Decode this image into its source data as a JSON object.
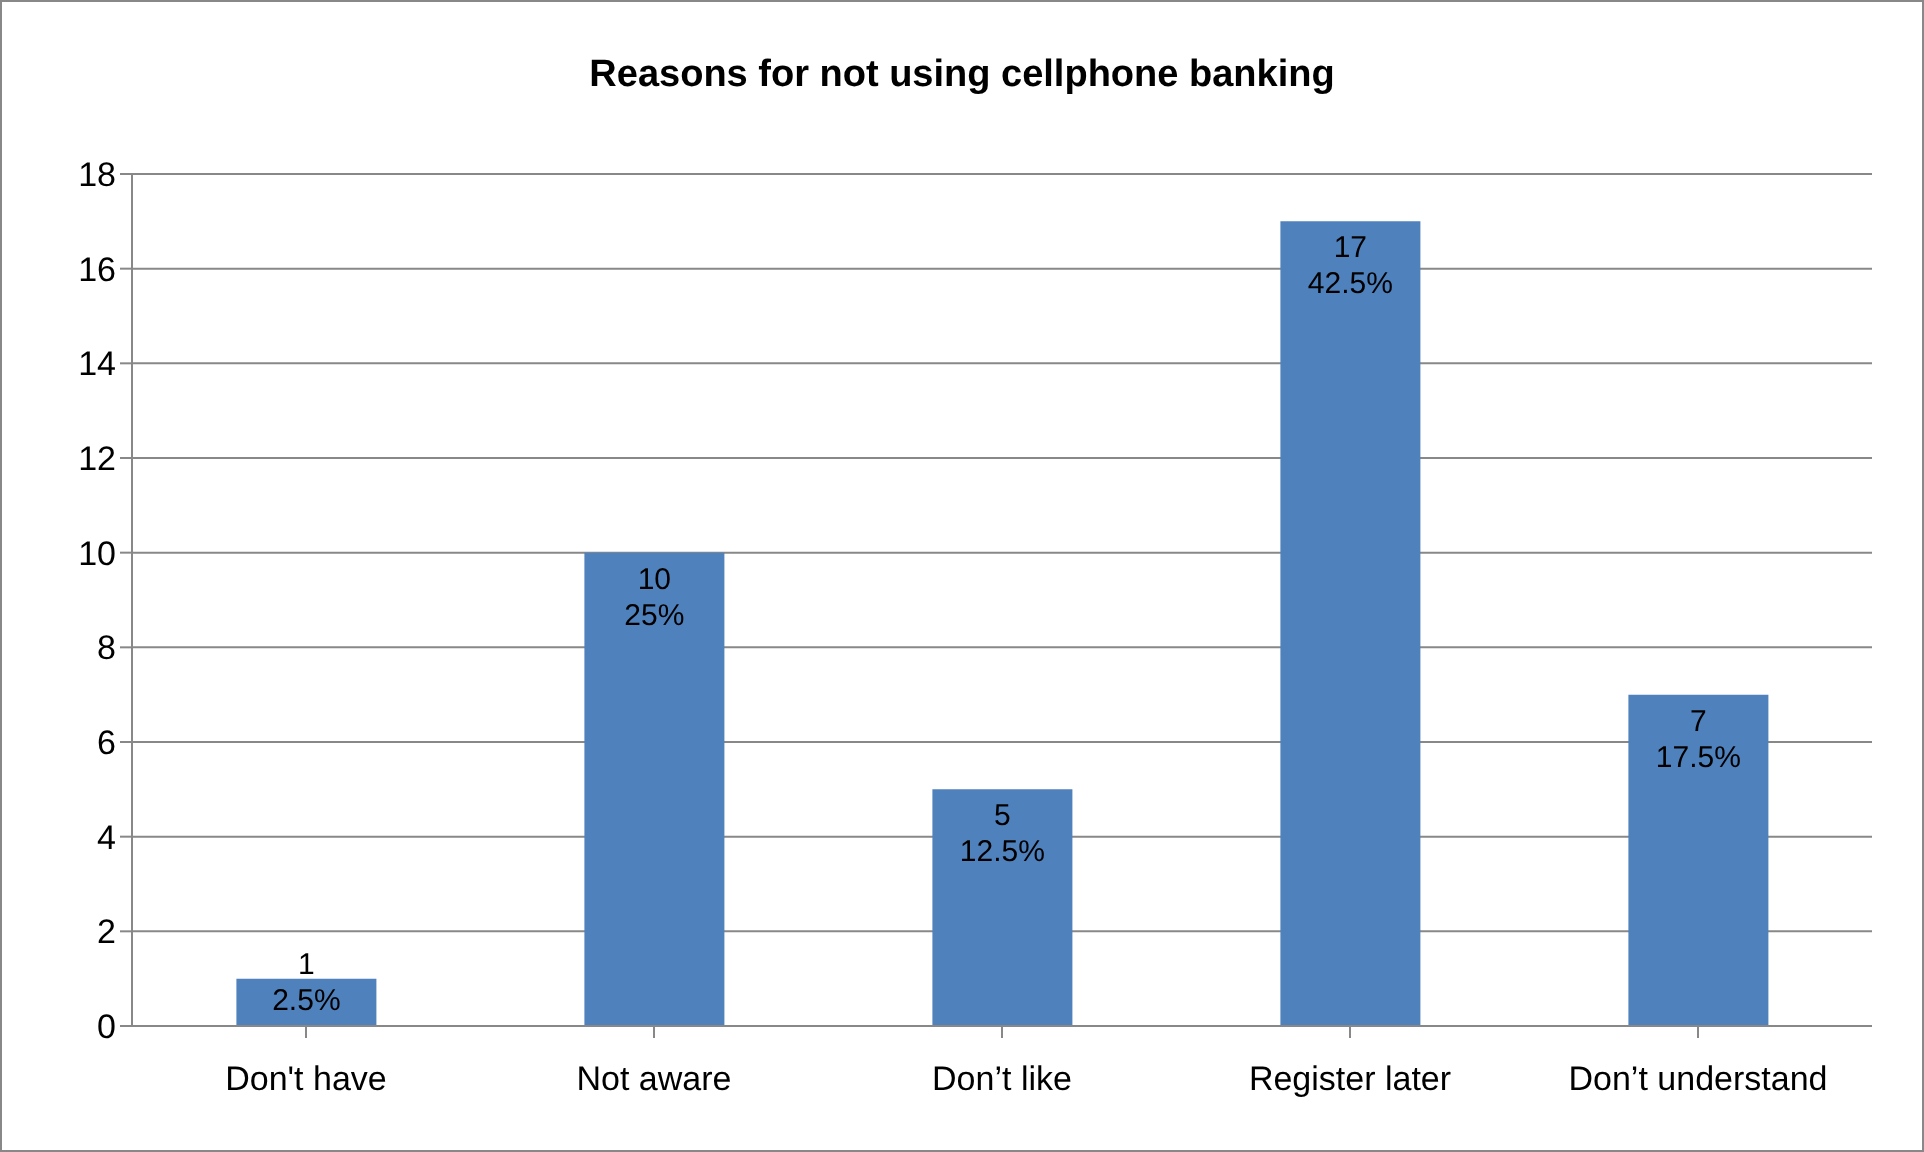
{
  "chart_data": {
    "type": "bar",
    "title": "Reasons for not using cellphone banking",
    "categories": [
      "Don't have",
      "Not aware",
      "Don’t like",
      "Register later",
      "Don’t understand"
    ],
    "values": [
      1,
      10,
      5,
      17,
      7
    ],
    "color": "#4f81bd",
    "value_labels": [
      "1\n2.5%",
      "10\n25%",
      "5\n12.5%",
      "17\n42.5%",
      "7\n17.5%"
    ],
    "ylim": [
      0,
      18
    ],
    "yticks": [
      0,
      2,
      4,
      6,
      8,
      10,
      12,
      14,
      16,
      18
    ],
    "grid": "y"
  }
}
